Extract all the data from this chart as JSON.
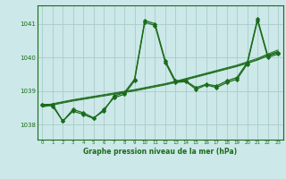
{
  "title": "Graphe pression niveau de la mer (hPa)",
  "bg_color": "#cce8e8",
  "grid_color": "#aacccc",
  "line_color": "#1a6b1a",
  "marker_color": "#1a6b1a",
  "xlim": [
    -0.5,
    23.5
  ],
  "ylim": [
    1037.55,
    1041.55
  ],
  "yticks": [
    1038,
    1039,
    1040,
    1041
  ],
  "xticks": [
    0,
    1,
    2,
    3,
    4,
    5,
    6,
    7,
    8,
    9,
    10,
    11,
    12,
    13,
    14,
    15,
    16,
    17,
    18,
    19,
    20,
    21,
    22,
    23
  ],
  "series1": [
    1038.6,
    1038.6,
    1038.1,
    1038.45,
    1038.35,
    1038.2,
    1038.4,
    1038.85,
    1038.95,
    1039.35,
    1041.1,
    1041.0,
    1039.9,
    1039.3,
    1039.3,
    1039.1,
    1039.2,
    1039.15,
    1039.3,
    1039.4,
    1039.85,
    1041.15,
    1040.05,
    1040.15
  ],
  "series2": [
    1038.6,
    1038.55,
    1038.1,
    1038.4,
    1038.3,
    1038.18,
    1038.45,
    1038.8,
    1038.9,
    1039.3,
    1041.05,
    1040.95,
    1039.85,
    1039.25,
    1039.28,
    1039.05,
    1039.18,
    1039.1,
    1039.25,
    1039.35,
    1039.8,
    1041.1,
    1040.0,
    1040.1
  ],
  "trend1": [
    1038.56,
    1038.62,
    1038.68,
    1038.74,
    1038.79,
    1038.84,
    1038.89,
    1038.94,
    1038.99,
    1039.04,
    1039.1,
    1039.16,
    1039.22,
    1039.29,
    1039.37,
    1039.45,
    1039.53,
    1039.61,
    1039.69,
    1039.77,
    1039.87,
    1039.97,
    1040.1,
    1040.22
  ],
  "trend2": [
    1038.54,
    1038.6,
    1038.66,
    1038.72,
    1038.77,
    1038.82,
    1038.87,
    1038.92,
    1038.97,
    1039.02,
    1039.08,
    1039.14,
    1039.2,
    1039.27,
    1039.35,
    1039.43,
    1039.51,
    1039.59,
    1039.67,
    1039.75,
    1039.84,
    1039.94,
    1040.07,
    1040.18
  ],
  "trend3": [
    1038.52,
    1038.58,
    1038.64,
    1038.7,
    1038.75,
    1038.8,
    1038.85,
    1038.9,
    1038.95,
    1039.0,
    1039.06,
    1039.12,
    1039.18,
    1039.25,
    1039.33,
    1039.41,
    1039.49,
    1039.57,
    1039.65,
    1039.73,
    1039.82,
    1039.92,
    1040.04,
    1040.15
  ]
}
